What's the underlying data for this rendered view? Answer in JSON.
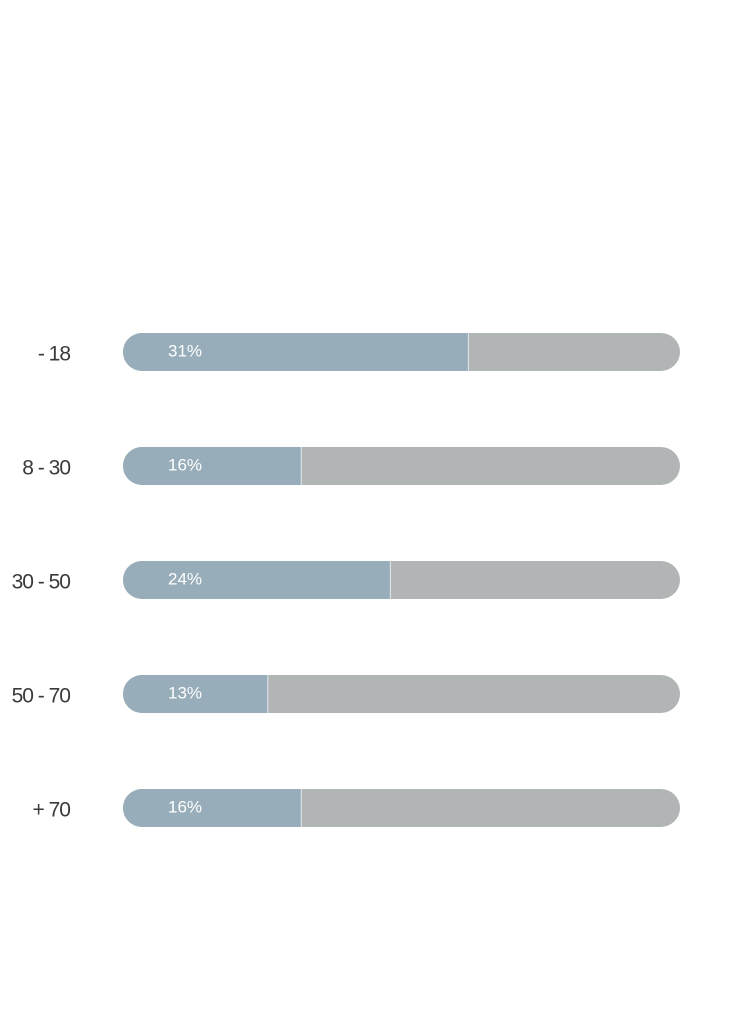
{
  "chart_data": {
    "type": "bar",
    "orientation": "horizontal",
    "categories": [
      "- 18",
      "8 - 30",
      "30 - 50",
      "50 - 70",
      "+ 70"
    ],
    "values": [
      31,
      16,
      24,
      13,
      16
    ],
    "value_labels": [
      "31%",
      "16%",
      "24%",
      "13%",
      "16%"
    ],
    "xlim": [
      0,
      50
    ],
    "color": "#97adb9",
    "track_color": "#b2b5b6"
  }
}
